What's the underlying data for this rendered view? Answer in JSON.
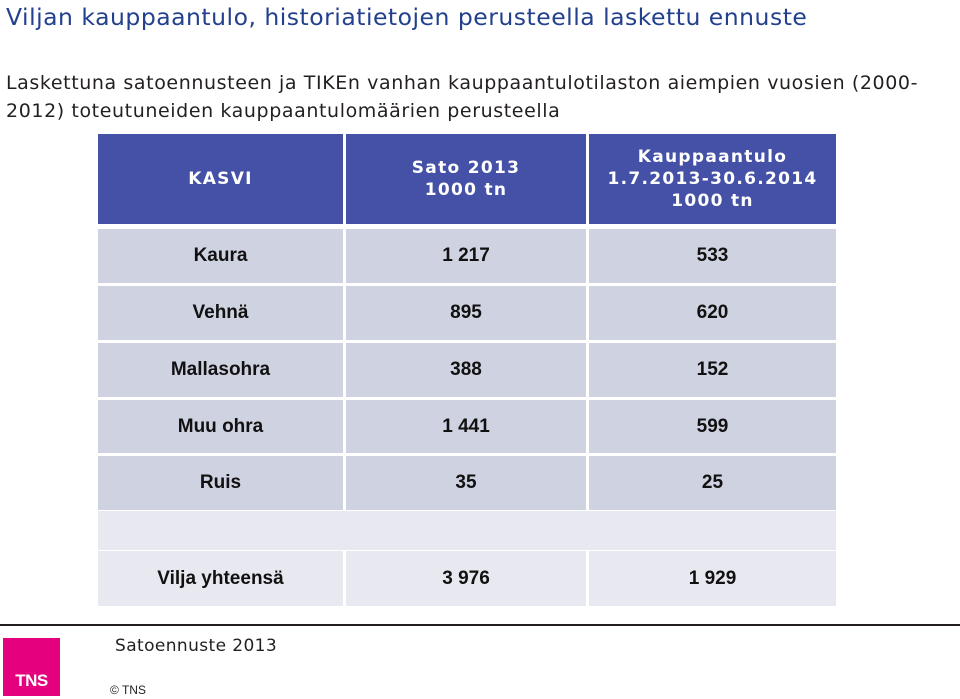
{
  "title": "Viljan kauppaantulo, historiatietojen perusteella laskettu ennuste",
  "subtitle": "Laskettuna satoennusteen ja TIKEn vanhan kauppaantulotilaston aiempien vuosien (2000-2012) toteutuneiden kauppaantulomäärien perusteella",
  "table": {
    "headers": [
      [
        "KASVI"
      ],
      [
        "Sato 2013",
        "1000 tn"
      ],
      [
        "Kauppaantulo",
        "1.7.2013-30.6.2014",
        "1000 tn"
      ]
    ],
    "rows": [
      [
        "Kaura",
        "1 217",
        "533"
      ],
      [
        "Vehnä",
        "895",
        "620"
      ],
      [
        "Mallasohra",
        "388",
        "152"
      ],
      [
        "Muu ohra",
        "1 441",
        "599"
      ],
      [
        "Ruis",
        "35",
        "25"
      ],
      [
        "Vilja yhteensä",
        "3 976",
        "1 929"
      ]
    ],
    "colors": {
      "header": "#4451a6",
      "row_dark": "#cfd2e1",
      "row_light": "#e8e9f0"
    }
  },
  "footer": {
    "text": "Satoennuste 2013",
    "copyright": "© TNS",
    "logo_text": "TNS",
    "logo_color": "#e5007e"
  }
}
